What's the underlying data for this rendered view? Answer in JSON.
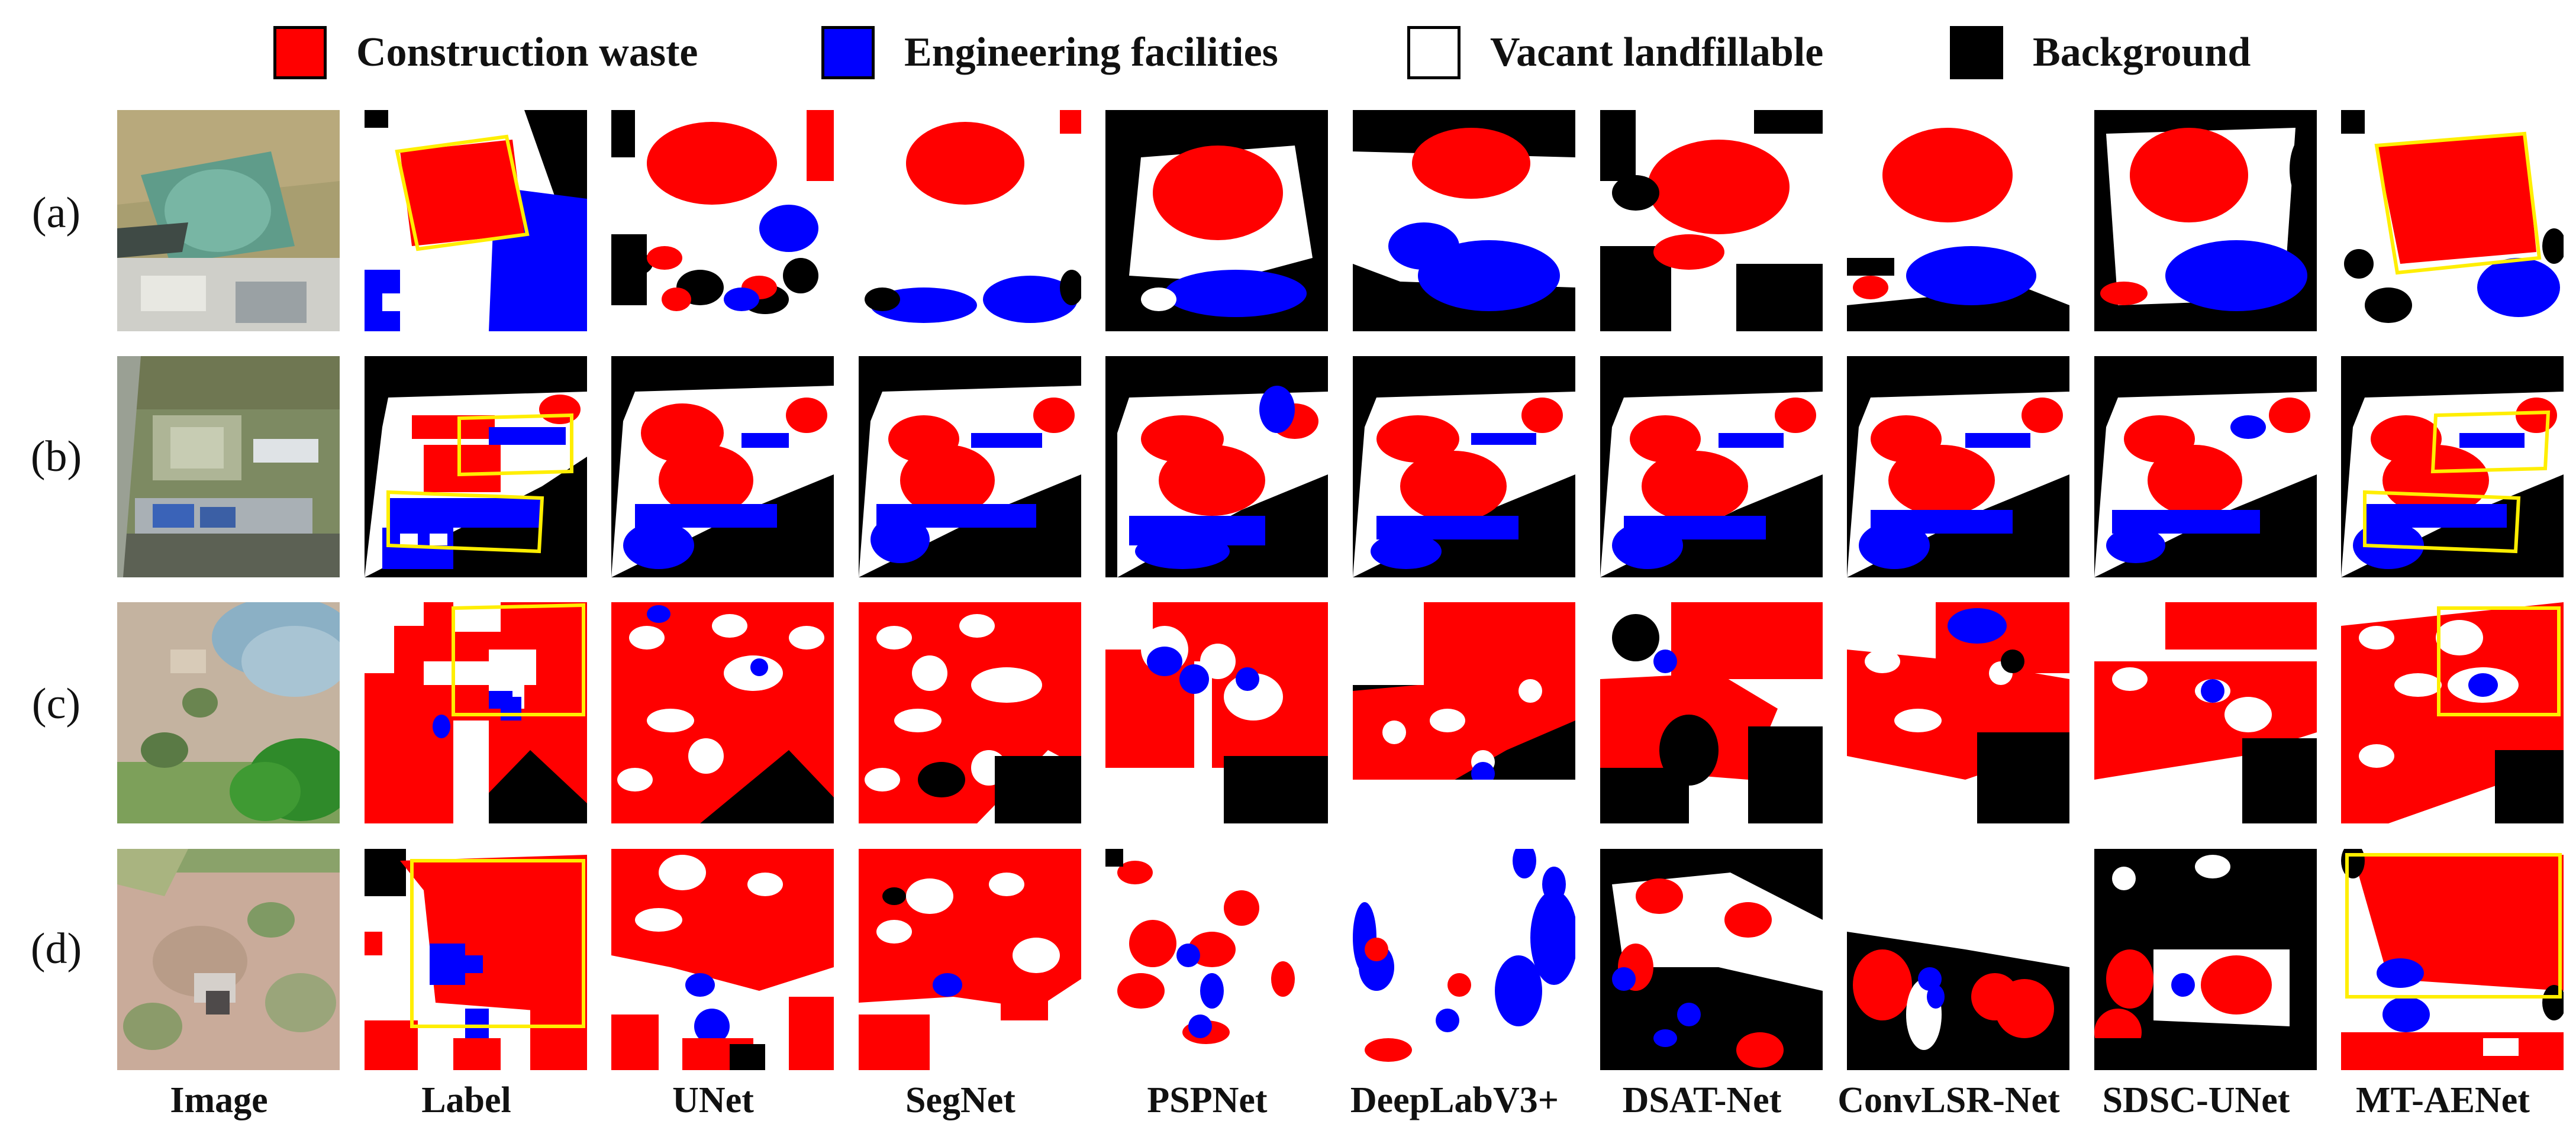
{
  "legend": {
    "items": [
      {
        "label": "Construction waste",
        "color": "#ff0000"
      },
      {
        "label": "Engineering facilities",
        "color": "#0000ff"
      },
      {
        "label": "Vacant landfillable",
        "color": "#ffffff"
      },
      {
        "label": "Background",
        "color": "#000000"
      }
    ]
  },
  "rows": [
    {
      "label": "(a)"
    },
    {
      "label": "(b)"
    },
    {
      "label": "(c)"
    },
    {
      "label": "(d)"
    }
  ],
  "columns": [
    {
      "label": "Image"
    },
    {
      "label": "Label"
    },
    {
      "label": "UNet"
    },
    {
      "label": "SegNet"
    },
    {
      "label": "PSPNet"
    },
    {
      "label": "DeepLabV3+"
    },
    {
      "label": "DSAT-Net"
    },
    {
      "label": "ConvLSR-Net"
    },
    {
      "label": "SDSC-UNet"
    },
    {
      "label": "MT-AENet"
    }
  ],
  "colors": {
    "waste": "#ff0000",
    "facility": "#0000ff",
    "vacant": "#ffffff",
    "background": "#000000",
    "highlight_box": "#ffee00"
  }
}
